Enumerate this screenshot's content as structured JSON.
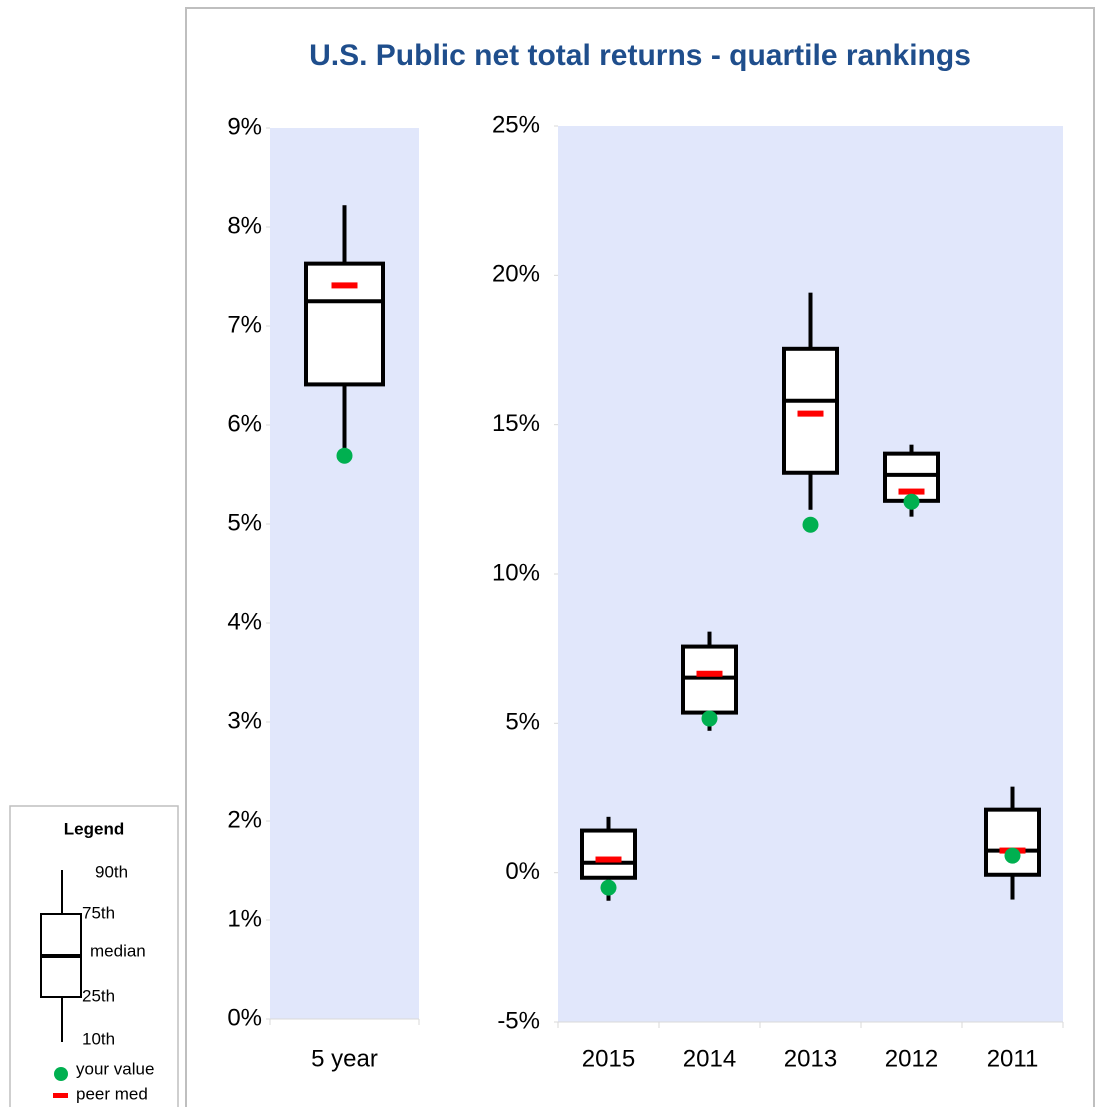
{
  "chart_data": [
    {
      "type": "box",
      "title": "U.S. Public net total returns - quartile rankings",
      "categories": [
        "5 year"
      ],
      "whisker_low": [
        5.75
      ],
      "q1": [
        6.41
      ],
      "median": [
        7.25
      ],
      "q3": [
        7.63
      ],
      "whisker_high": [
        8.22
      ],
      "your_value": [
        5.69
      ],
      "peer_median": [
        7.41
      ],
      "ylim": [
        0,
        9
      ],
      "yticks": [
        {
          "value": 0,
          "label": "0%"
        },
        {
          "value": 1,
          "label": "1%"
        },
        {
          "value": 2,
          "label": "2%"
        },
        {
          "value": 3,
          "label": "3%"
        },
        {
          "value": 4,
          "label": "4%"
        },
        {
          "value": 5,
          "label": "5%"
        },
        {
          "value": 6,
          "label": "6%"
        },
        {
          "value": 7,
          "label": "7%"
        },
        {
          "value": 8,
          "label": "8%"
        },
        {
          "value": 9,
          "label": "9%"
        }
      ],
      "box_color": "#000000",
      "your_value_color": "#00b050",
      "peer_median_color": "#ff0000",
      "plot_background": "#e1e7fb"
    },
    {
      "type": "box",
      "categories": [
        "2015",
        "2014",
        "2013",
        "2012",
        "2011"
      ],
      "whisker_low": [
        -0.94,
        4.75,
        12.15,
        11.92,
        -0.9
      ],
      "q1": [
        -0.17,
        5.36,
        13.39,
        12.45,
        -0.07
      ],
      "median": [
        0.33,
        6.53,
        15.8,
        13.32,
        0.74
      ],
      "q3": [
        1.41,
        7.57,
        17.54,
        14.03,
        2.11
      ],
      "whisker_high": [
        1.87,
        8.07,
        19.42,
        14.33,
        2.88
      ],
      "your_value": [
        -0.5,
        5.16,
        11.65,
        12.42,
        0.57
      ],
      "peer_median": [
        0.44,
        6.66,
        15.37,
        12.76,
        0.74
      ],
      "ylim": [
        -5,
        25
      ],
      "yticks": [
        {
          "value": -5,
          "label": "-5%"
        },
        {
          "value": 0,
          "label": "0%"
        },
        {
          "value": 5,
          "label": "5%"
        },
        {
          "value": 10,
          "label": "10%"
        },
        {
          "value": 15,
          "label": "15%"
        },
        {
          "value": 20,
          "label": "20%"
        },
        {
          "value": 25,
          "label": "25%"
        }
      ],
      "box_color": "#000000",
      "your_value_color": "#00b050",
      "peer_median_color": "#ff0000",
      "plot_background": "#e1e7fb"
    }
  ],
  "legend": {
    "title": "Legend",
    "labels": [
      "90th",
      "75th",
      "median",
      "25th",
      "10th"
    ],
    "your_value": "your value",
    "peer_median": "peer med"
  }
}
